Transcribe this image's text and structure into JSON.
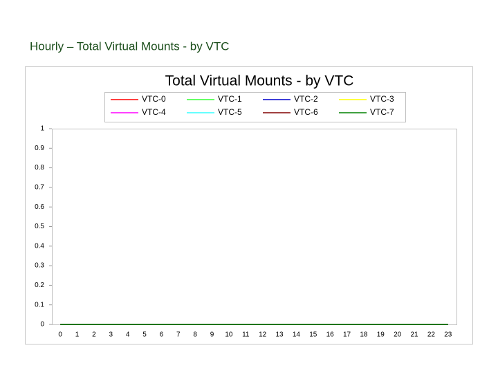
{
  "heading": "Hourly – Total Virtual Mounts - by VTC",
  "chart_data": {
    "type": "line",
    "title": "Total Virtual Mounts - by VTC",
    "categories": [
      "0",
      "1",
      "2",
      "3",
      "4",
      "5",
      "6",
      "7",
      "8",
      "9",
      "10",
      "11",
      "12",
      "13",
      "14",
      "15",
      "16",
      "17",
      "18",
      "19",
      "20",
      "21",
      "22",
      "23"
    ],
    "series": [
      {
        "name": "VTC-0",
        "color": "#ff0000",
        "values": [
          0,
          0,
          0,
          0,
          0,
          0,
          0,
          0,
          0,
          0,
          0,
          0,
          0,
          0,
          0,
          0,
          0,
          0,
          0,
          0,
          0,
          0,
          0,
          0
        ]
      },
      {
        "name": "VTC-1",
        "color": "#33ff33",
        "values": [
          0,
          0,
          0,
          0,
          0,
          0,
          0,
          0,
          0,
          0,
          0,
          0,
          0,
          0,
          0,
          0,
          0,
          0,
          0,
          0,
          0,
          0,
          0,
          0
        ]
      },
      {
        "name": "VTC-2",
        "color": "#0000cc",
        "values": [
          0,
          0,
          0,
          0,
          0,
          0,
          0,
          0,
          0,
          0,
          0,
          0,
          0,
          0,
          0,
          0,
          0,
          0,
          0,
          0,
          0,
          0,
          0,
          0
        ]
      },
      {
        "name": "VTC-3",
        "color": "#ffff00",
        "values": [
          0,
          0,
          0,
          0,
          0,
          0,
          0,
          0,
          0,
          0,
          0,
          0,
          0,
          0,
          0,
          0,
          0,
          0,
          0,
          0,
          0,
          0,
          0,
          0
        ]
      },
      {
        "name": "VTC-4",
        "color": "#ff00ff",
        "values": [
          0,
          0,
          0,
          0,
          0,
          0,
          0,
          0,
          0,
          0,
          0,
          0,
          0,
          0,
          0,
          0,
          0,
          0,
          0,
          0,
          0,
          0,
          0,
          0
        ]
      },
      {
        "name": "VTC-5",
        "color": "#33ffff",
        "values": [
          0,
          0,
          0,
          0,
          0,
          0,
          0,
          0,
          0,
          0,
          0,
          0,
          0,
          0,
          0,
          0,
          0,
          0,
          0,
          0,
          0,
          0,
          0,
          0
        ]
      },
      {
        "name": "VTC-6",
        "color": "#800000",
        "values": [
          0,
          0,
          0,
          0,
          0,
          0,
          0,
          0,
          0,
          0,
          0,
          0,
          0,
          0,
          0,
          0,
          0,
          0,
          0,
          0,
          0,
          0,
          0,
          0
        ]
      },
      {
        "name": "VTC-7",
        "color": "#008000",
        "values": [
          0,
          0,
          0,
          0,
          0,
          0,
          0,
          0,
          0,
          0,
          0,
          0,
          0,
          0,
          0,
          0,
          0,
          0,
          0,
          0,
          0,
          0,
          0,
          0
        ]
      }
    ],
    "ylim": [
      0,
      1
    ],
    "yticks": [
      0,
      0.1,
      0.2,
      0.3,
      0.4,
      0.5,
      0.6,
      0.7,
      0.8,
      0.9,
      1
    ],
    "grid": false,
    "legend": "top"
  }
}
